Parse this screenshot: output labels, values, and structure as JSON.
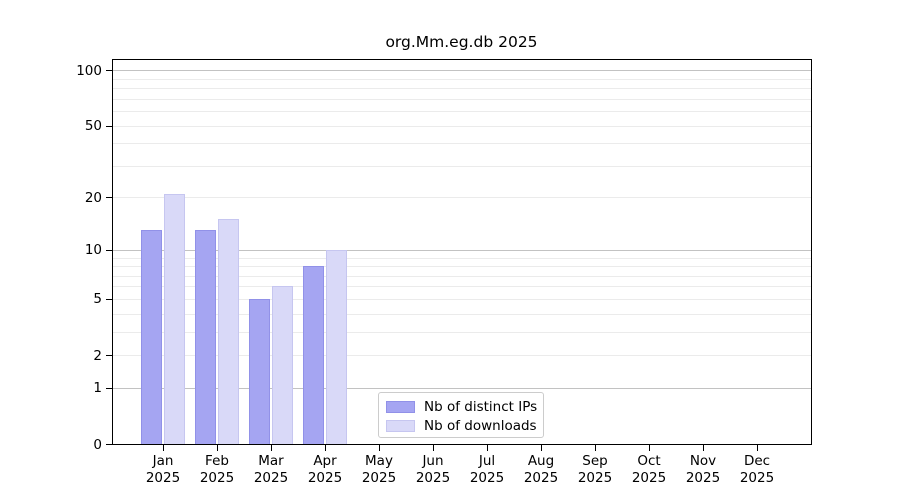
{
  "chart_data": {
    "type": "bar",
    "title": "org.Mm.eg.db 2025",
    "categories": [
      "Jan",
      "Feb",
      "Mar",
      "Apr",
      "May",
      "Jun",
      "Jul",
      "Aug",
      "Sep",
      "Oct",
      "Nov",
      "Dec"
    ],
    "category_year": "2025",
    "series": [
      {
        "name": "Nb of distinct IPs",
        "values": [
          13,
          13,
          5,
          8,
          null,
          null,
          null,
          null,
          null,
          null,
          null,
          null
        ]
      },
      {
        "name": "Nb of downloads",
        "values": [
          21,
          15,
          6,
          10,
          null,
          null,
          null,
          null,
          null,
          null,
          null,
          null
        ]
      }
    ],
    "y_scale": "log10(1+x)",
    "y_ticks": [
      0,
      1,
      2,
      5,
      10,
      20,
      50,
      100
    ],
    "ylim": [
      0,
      115
    ],
    "grid": {
      "major_at": [
        1,
        10,
        100
      ],
      "minor_at": [
        2,
        3,
        4,
        5,
        6,
        7,
        8,
        9,
        20,
        30,
        40,
        50,
        60,
        70,
        80,
        90
      ]
    },
    "legend_position": "bottom-center",
    "xlabel": "",
    "ylabel": ""
  },
  "colors": {
    "distinct_ips_fill": "#a5a5f2",
    "distinct_ips_border": "#9191e8",
    "downloads_fill": "#d9d9f8",
    "downloads_border": "#c6c6f0",
    "grid_major": "#c2c2c2",
    "grid_minor": "#ebebeb",
    "axis": "#000000",
    "text": "#000000",
    "legend_border": "#cccccc"
  }
}
